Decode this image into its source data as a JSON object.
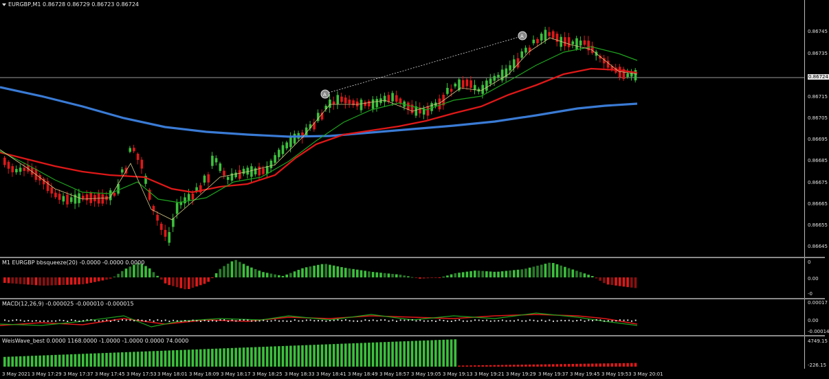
{
  "main": {
    "symbol_label": "EURGBP,M1 0.86728 0.86729 0.86723 0.86724",
    "price_ticks": [
      "0.86745",
      "0.86735",
      "0.86724",
      "0.86715",
      "0.86705",
      "0.86695",
      "0.86685",
      "0.86675",
      "0.86665",
      "0.86655",
      "0.86645"
    ],
    "current_price": "0.86724",
    "markers": [
      "A",
      "A"
    ]
  },
  "bbsqueeze": {
    "label": "M1 EURGBP bbsqueeze(20) -0.0000 -0.0000 0.0000",
    "ticks": [
      "0",
      "0.00",
      "-0"
    ]
  },
  "macd": {
    "label": "MACD(12,26,9) -0.000025 -0.000010 -0.000015",
    "ticks": [
      "0.00017",
      "0.00",
      "-0.00014"
    ]
  },
  "weis": {
    "label": "WeisWave_best 0.0000 1168.0000 -1.0000 -1.0000 0.0000 74.0000",
    "ticks": [
      "4749.15",
      "-226.15"
    ]
  },
  "time_labels": [
    "3 May 2021",
    "3 May 17:29",
    "3 May 17:37",
    "3 May 17:45",
    "3 May 17:53",
    "3 May 18:01",
    "3 May 18:09",
    "3 May 18:17",
    "3 May 18:25",
    "3 May 18:33",
    "3 May 18:41",
    "3 May 18:49",
    "3 May 18:57",
    "3 May 19:05",
    "3 May 19:13",
    "3 May 19:21",
    "3 May 19:29",
    "3 May 19:37",
    "3 May 19:45",
    "3 May 19:53",
    "3 May 20:01"
  ],
  "colors": {
    "bull": "#3cbf3c",
    "bear": "#e01818",
    "ma_blue": "#3a7bd5",
    "ma_red": "#e01818",
    "ma_green": "#1fa31f"
  }
}
